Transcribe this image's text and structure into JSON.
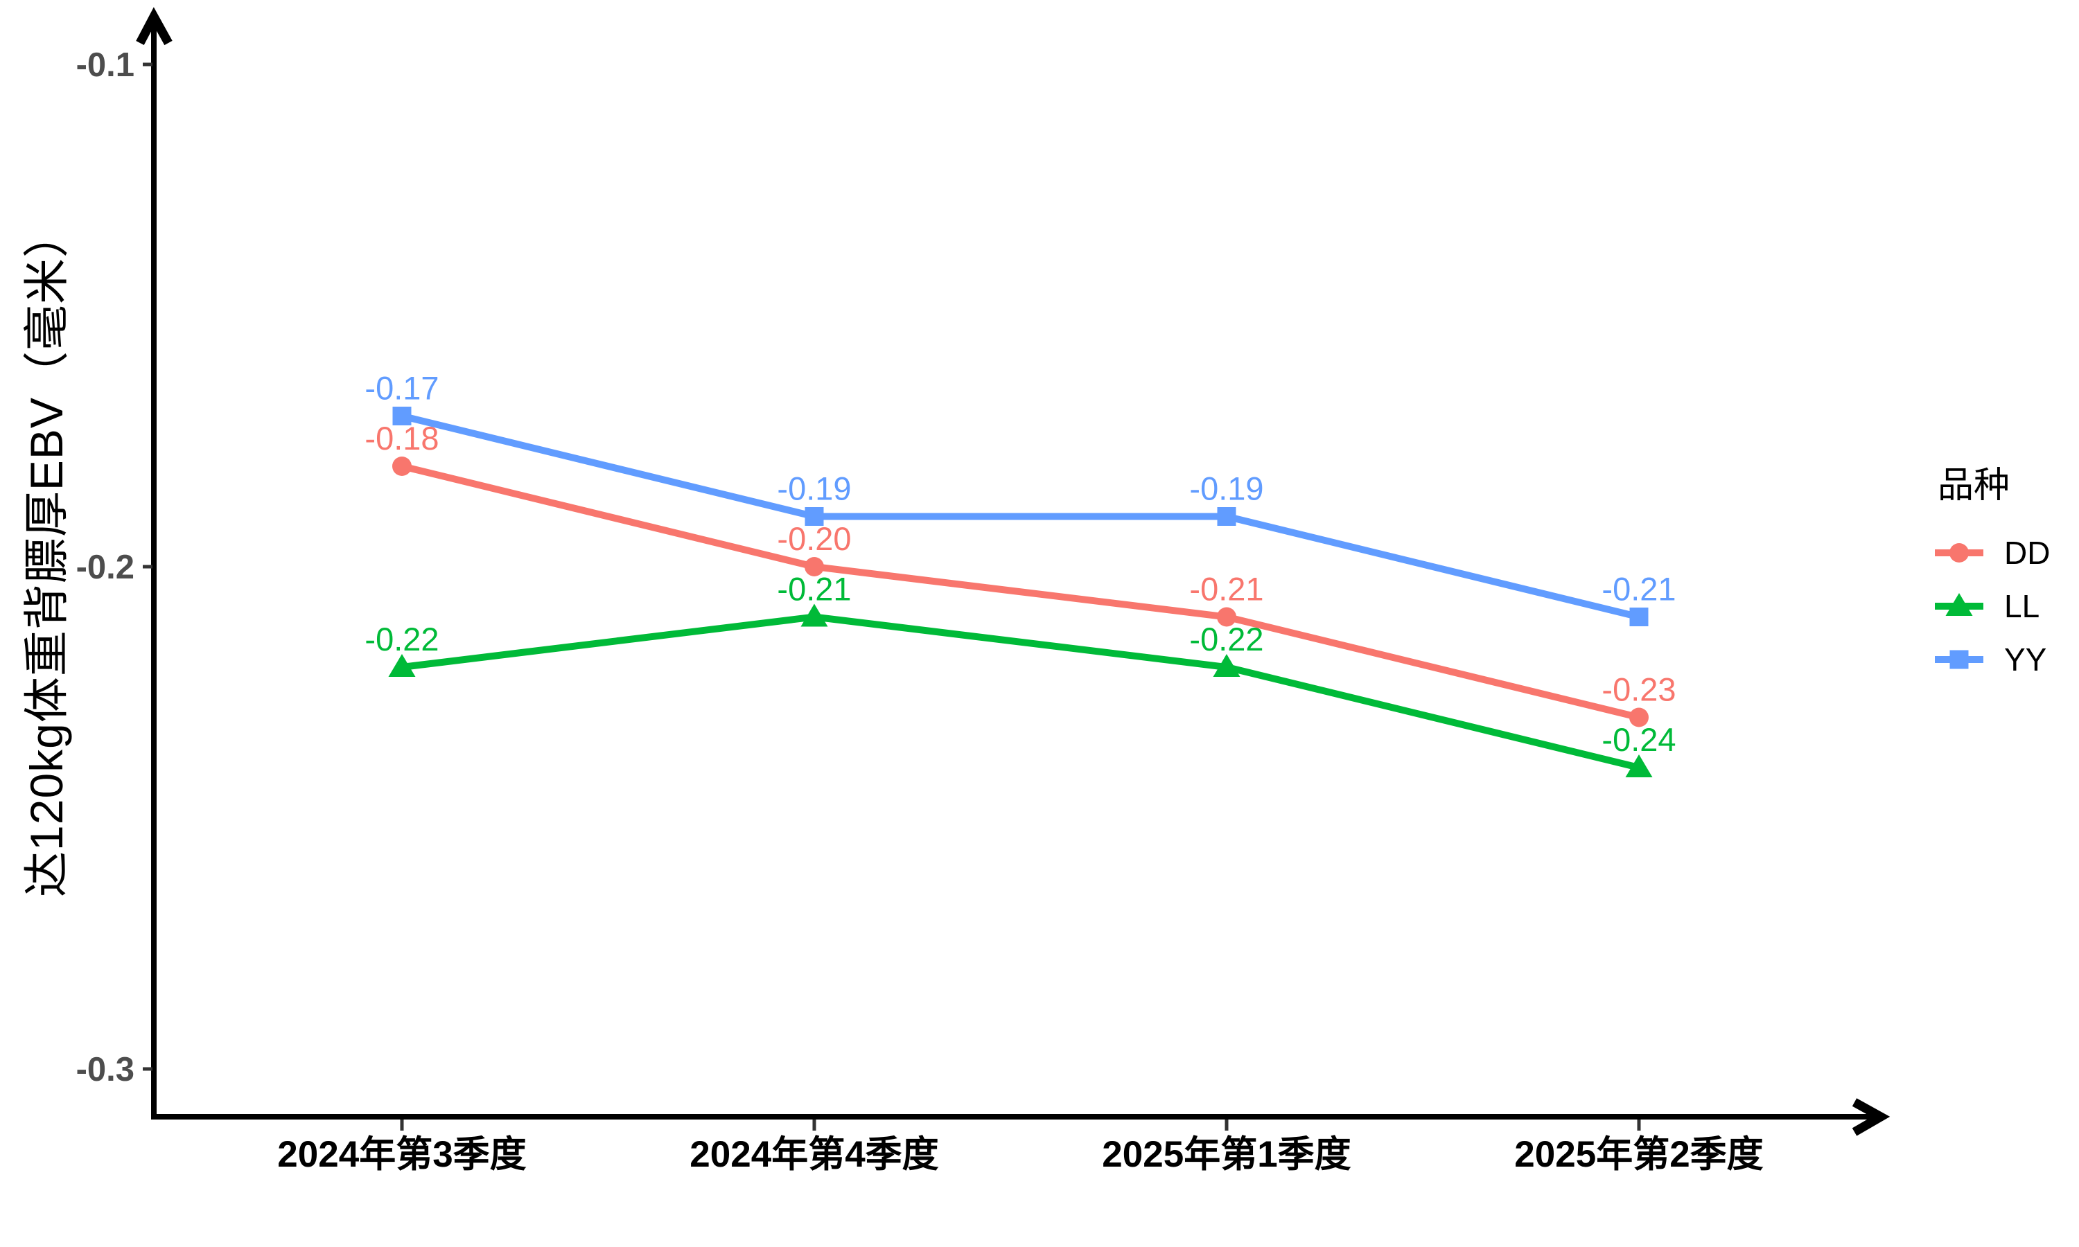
{
  "chart_data": {
    "type": "line",
    "title": "",
    "ylabel": "达120kg体重背膘厚EBV（毫米）",
    "xlabel": "",
    "categories": [
      "2024年第3季度",
      "2024年第4季度",
      "2025年第1季度",
      "2025年第2季度"
    ],
    "y_ticks": [
      {
        "value": -0.1,
        "label": "-0.1"
      },
      {
        "value": -0.2,
        "label": "-0.2"
      },
      {
        "value": -0.3,
        "label": "-0.3"
      }
    ],
    "ylim": [
      -0.31,
      -0.09
    ],
    "grid": false,
    "legend_position": "right",
    "legend_title": "品种",
    "series": [
      {
        "name": "DD",
        "color": "#F8766D",
        "marker": "circle",
        "values": [
          -0.18,
          -0.2,
          -0.21,
          -0.23
        ],
        "point_labels": [
          "-0.18",
          "-0.20",
          "-0.21",
          "-0.23"
        ]
      },
      {
        "name": "LL",
        "color": "#00BA38",
        "marker": "triangle",
        "values": [
          -0.22,
          -0.21,
          -0.22,
          -0.24
        ],
        "point_labels": [
          "-0.22",
          "-0.21",
          "-0.22",
          "-0.24"
        ]
      },
      {
        "name": "YY",
        "color": "#619CFF",
        "marker": "square",
        "values": [
          -0.17,
          -0.19,
          -0.19,
          -0.21
        ],
        "point_labels": [
          "-0.17",
          "-0.19",
          "-0.19",
          "-0.21"
        ]
      }
    ],
    "axis_color": "#000000",
    "tick_color": "#333333",
    "ytick_text_color": "#4d4d4d",
    "xtick_text_color": "#000000"
  }
}
